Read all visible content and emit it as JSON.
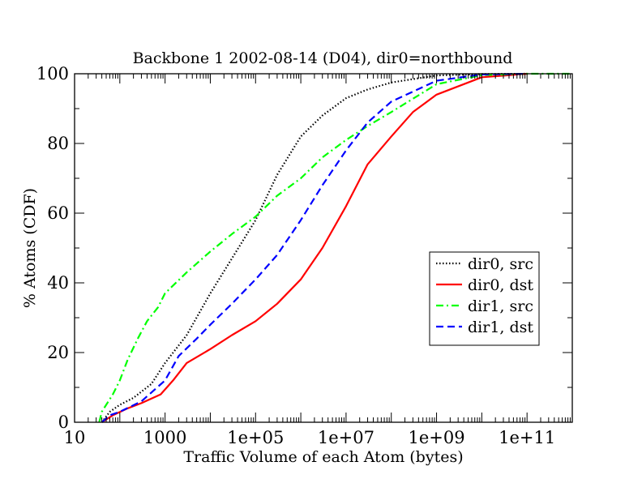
{
  "chart_data": {
    "type": "line",
    "title": "Backbone 1 2002-08-14 (D04), dir0=northbound",
    "xlabel": "Traffic Volume of each Atom (bytes)",
    "ylabel": "% Atoms (CDF)",
    "xscale": "log10",
    "xlim": [
      10,
      1000000000000
    ],
    "ylim": [
      0,
      100
    ],
    "x_ticks": [
      10,
      1000,
      100000,
      10000000,
      1000000000,
      100000000000
    ],
    "x_tick_labels": [
      "10",
      "1000",
      "1e+05",
      "1e+07",
      "1e+09",
      "1e+11"
    ],
    "y_ticks": [
      0,
      20,
      40,
      60,
      80,
      100
    ],
    "y_tick_labels": [
      "0",
      "20",
      "40",
      "60",
      "80",
      "100"
    ],
    "grid": false,
    "legend_position": "right, center",
    "series": [
      {
        "name": "dir0, src",
        "color": "#000000",
        "dash": "dotted",
        "x": [
          40,
          60,
          100,
          200,
          500,
          1000,
          3000,
          10000,
          30000,
          100000,
          300000,
          1000000,
          3000000,
          10000000,
          30000000,
          100000000,
          1000000000,
          10000000000,
          100000000000
        ],
        "y": [
          0,
          3,
          5,
          7,
          11,
          17,
          25,
          37,
          47,
          58,
          71,
          82,
          88,
          93,
          95.5,
          97.5,
          99.5,
          99.9,
          100
        ]
      },
      {
        "name": "dir0, dst",
        "color": "#ff0000",
        "dash": "solid",
        "x": [
          40,
          70,
          150,
          300,
          800,
          1500,
          3000,
          10000,
          30000,
          100000,
          300000,
          1000000,
          3000000,
          10000000,
          30000000,
          100000000,
          300000000,
          1000000000,
          10000000000,
          100000000000
        ],
        "y": [
          0,
          2,
          4,
          5.5,
          8,
          12,
          17,
          21,
          25,
          29,
          34,
          41,
          50,
          62,
          74,
          82,
          89,
          94,
          99,
          100
        ]
      },
      {
        "name": "dir1, src",
        "color": "#00ff00",
        "dash": "dash-dot",
        "x": [
          35,
          40,
          50,
          70,
          100,
          150,
          250,
          400,
          700,
          1000,
          3000,
          10000,
          30000,
          100000,
          300000,
          1000000,
          3000000,
          10000000,
          30000000,
          100000000,
          1000000000,
          10000000000,
          100000000000,
          1000000000000
        ],
        "y": [
          0,
          3,
          5,
          8,
          12,
          18,
          24,
          29,
          33,
          37,
          43,
          49,
          54,
          59,
          65,
          70,
          76,
          81,
          85,
          89,
          97,
          99.6,
          100,
          100
        ]
      },
      {
        "name": "dir1, dst",
        "color": "#0000ff",
        "dash": "dashed",
        "x": [
          40,
          60,
          100,
          300,
          1000,
          2000,
          5000,
          10000,
          30000,
          100000,
          300000,
          1000000,
          3000000,
          10000000,
          30000000,
          100000000,
          1000000000,
          10000000000,
          100000000000
        ],
        "y": [
          0,
          2,
          3,
          6,
          12,
          19,
          24,
          28,
          34,
          41,
          48,
          58,
          68,
          78,
          86,
          92,
          98,
          99.8,
          100
        ]
      }
    ]
  }
}
